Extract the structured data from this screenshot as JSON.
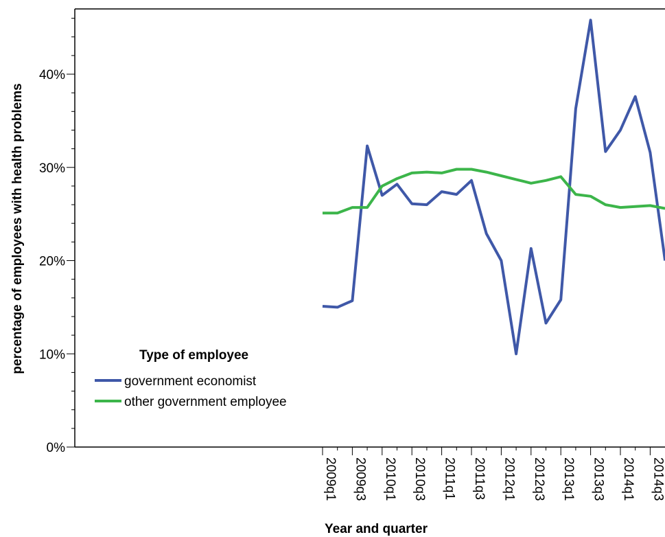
{
  "chart_data": {
    "type": "line",
    "title": "",
    "xlabel": "Year and quarter",
    "ylabel": "percentage of employees with health problems",
    "ylim": [
      0,
      47
    ],
    "yticks": [
      {
        "value": 0,
        "label": "0%"
      },
      {
        "value": 10,
        "label": "10%"
      },
      {
        "value": 20,
        "label": "20%"
      },
      {
        "value": 30,
        "label": "30%"
      },
      {
        "value": 40,
        "label": "40%"
      }
    ],
    "x": [
      "2009q1",
      "2009q2",
      "2009q3",
      "2009q4",
      "2010q1",
      "2010q2",
      "2010q3",
      "2010q4",
      "2011q1",
      "2011q2",
      "2011q3",
      "2011q4",
      "2012q1",
      "2012q2",
      "2012q3",
      "2012q4",
      "2013q1",
      "2013q2",
      "2013q3",
      "2013q4",
      "2014q1",
      "2014q2",
      "2014q3",
      "2014q4"
    ],
    "x_tick_labels": [
      "2009q1",
      "2009q3",
      "2010q1",
      "2010q3",
      "2011q1",
      "2011q3",
      "2012q1",
      "2012q3",
      "2013q1",
      "2013q3",
      "2014q1",
      "2014q3"
    ],
    "grid": false,
    "legend": {
      "title": "Type of employee",
      "position": "left"
    },
    "series": [
      {
        "name": "government economist",
        "color": "#3f58a8",
        "values": [
          15.1,
          15.0,
          15.7,
          32.3,
          27.0,
          28.2,
          26.1,
          26.0,
          27.4,
          27.1,
          28.6,
          22.9,
          20.0,
          10.0,
          21.3,
          13.3,
          15.8,
          36.3,
          45.8,
          31.7,
          34.0,
          37.6,
          31.6,
          20.0
        ]
      },
      {
        "name": "other government employee",
        "color": "#3cb54a",
        "values": [
          25.1,
          25.1,
          25.7,
          25.7,
          28.0,
          28.8,
          29.4,
          29.5,
          29.4,
          29.8,
          29.8,
          29.5,
          29.1,
          28.7,
          28.3,
          28.6,
          29.0,
          27.1,
          26.9,
          26.0,
          25.7,
          25.8,
          25.9,
          25.6
        ]
      }
    ]
  }
}
